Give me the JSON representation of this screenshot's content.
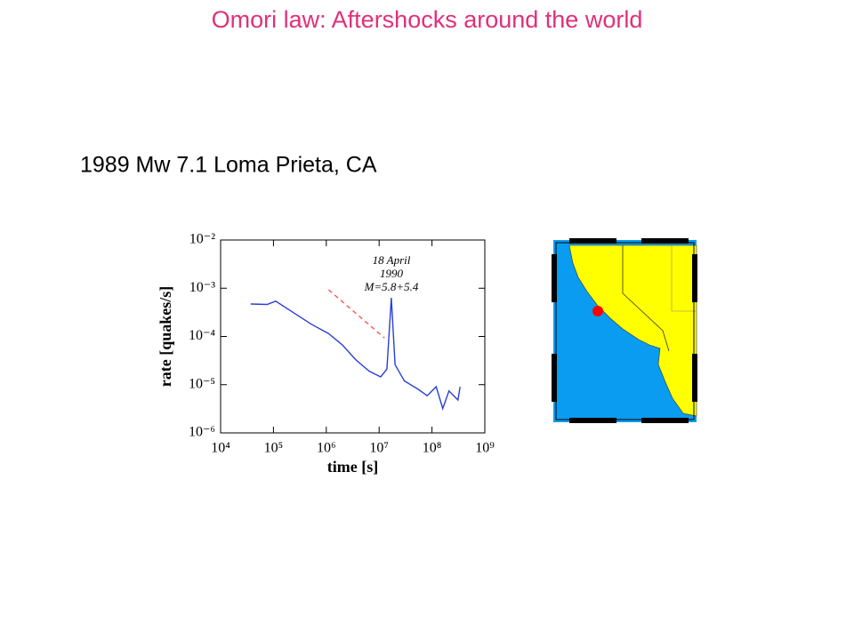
{
  "slide": {
    "title": "Omori law: Aftershocks around the world",
    "subtitle": "1989 Mw 7.1 Loma Prieta, CA"
  },
  "chart_data": {
    "type": "line",
    "x_label": "time [s]",
    "y_label": "rate [quakes/s]",
    "annotations": [
      "18 April",
      "1990",
      "M=5.8+5.4"
    ],
    "log_x": true,
    "log_y": true,
    "xlim": [
      10000,
      1000000000
    ],
    "xticks": [
      {
        "value": 10000,
        "label": "10⁴"
      },
      {
        "value": 100000,
        "label": "10⁵"
      },
      {
        "value": 1000000,
        "label": "10⁶"
      },
      {
        "value": 10000000,
        "label": "10⁷"
      },
      {
        "value": 100000000,
        "label": "10⁸"
      },
      {
        "value": 1000000000,
        "label": "10⁹"
      }
    ],
    "ylim": [
      1e-06,
      0.01
    ],
    "yticks": [
      {
        "value": 1e-06,
        "label": "10⁻⁶"
      },
      {
        "value": 1e-05,
        "label": "10⁻⁵"
      },
      {
        "value": 0.0001,
        "label": "10⁻⁴"
      },
      {
        "value": 0.001,
        "label": "10⁻³"
      },
      {
        "value": 0.01,
        "label": "10⁻²"
      }
    ],
    "series": [
      {
        "color": "#2a3fd6",
        "dash": false,
        "x": [
          37000,
          76000,
          110000,
          240000,
          520000,
          1100000,
          2000000,
          3600000,
          6500000,
          10700000,
          14000000,
          17000000,
          20000000,
          30000000,
          55000000,
          81000000,
          120000000,
          160000000,
          210000000,
          310000000,
          340000000
        ],
        "values": [
          0.00047,
          0.00046,
          0.00054,
          0.00031,
          0.00018,
          0.000115,
          6.7e-05,
          3.3e-05,
          1.9e-05,
          1.45e-05,
          2.1e-05,
          0.00063,
          2.6e-05,
          1.2e-05,
          8e-06,
          5.9e-06,
          9.1e-06,
          3.2e-06,
          7.4e-06,
          4.8e-06,
          9e-06
        ]
      },
      {
        "color": "#ff5050",
        "dash": true,
        "x": [
          1100000,
          12600000
        ],
        "values": [
          0.00093,
          9.3e-05
        ]
      }
    ]
  }
}
